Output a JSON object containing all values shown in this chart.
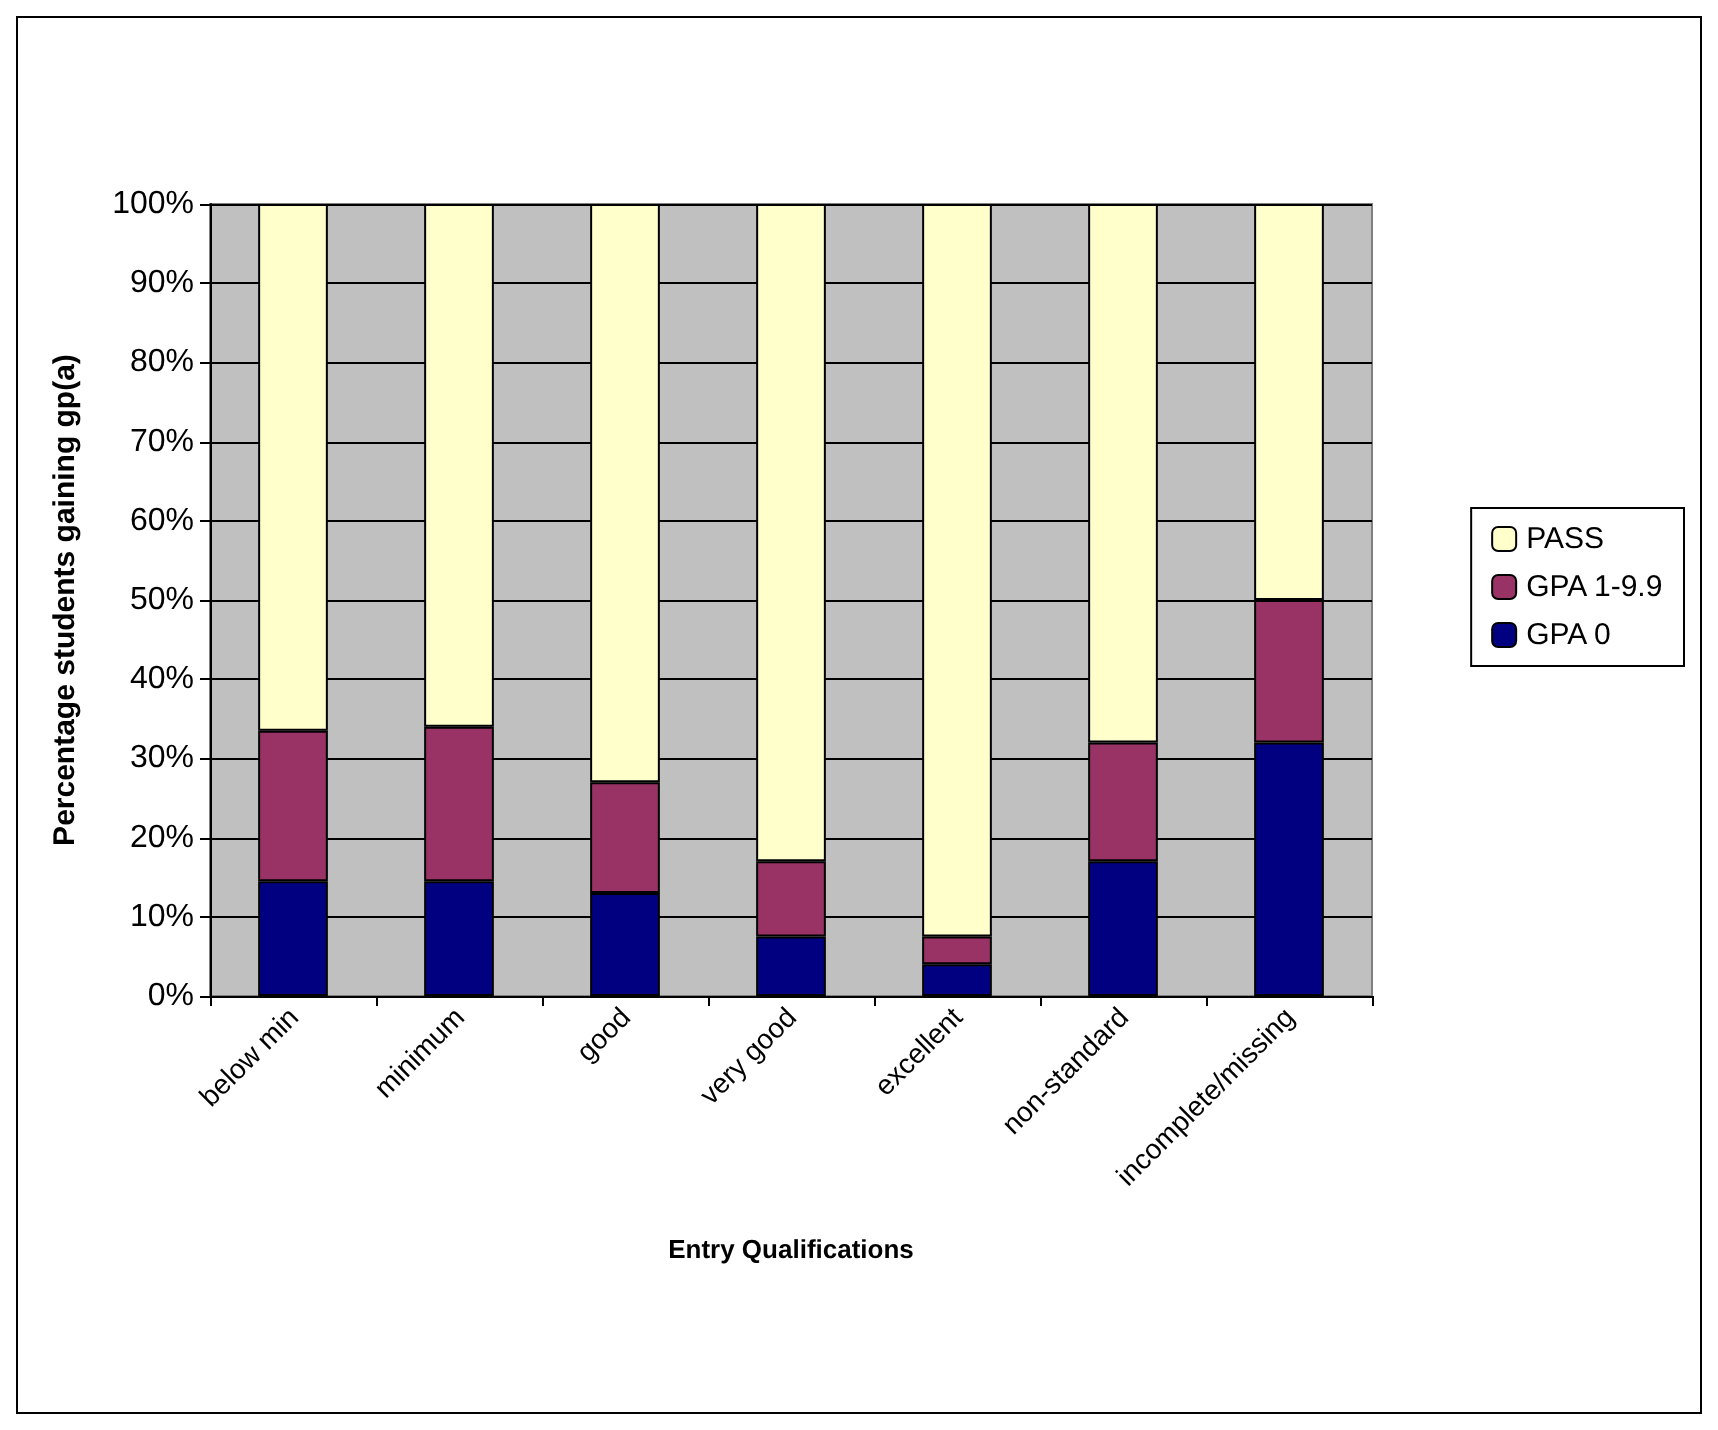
{
  "chart_data": {
    "type": "bar",
    "stacked": true,
    "xlabel": "Entry Qualifications",
    "ylabel": "Percentage students gaining gp(a)",
    "categories": [
      "below min",
      "minimum",
      "good",
      "very good",
      "excellent",
      "non-standard",
      "incomplete/missing"
    ],
    "series": [
      {
        "name": "GPA 0",
        "color": "#000080",
        "values": [
          14.5,
          14.5,
          13,
          7.5,
          4,
          17,
          32
        ]
      },
      {
        "name": "GPA 1-9.9",
        "color": "#993366",
        "values": [
          19,
          19.5,
          14,
          9.5,
          3.5,
          15,
          18
        ]
      },
      {
        "name": "PASS",
        "color": "#ffffcc",
        "values": [
          66.5,
          66,
          73,
          83,
          92.5,
          68,
          50
        ]
      }
    ],
    "ylim": [
      0,
      100
    ],
    "yticks": [
      {
        "value": 0,
        "label": "0%"
      },
      {
        "value": 10,
        "label": "10%"
      },
      {
        "value": 20,
        "label": "20%"
      },
      {
        "value": 30,
        "label": "30%"
      },
      {
        "value": 40,
        "label": "40%"
      },
      {
        "value": 50,
        "label": "50%"
      },
      {
        "value": 60,
        "label": "60%"
      },
      {
        "value": 70,
        "label": "70%"
      },
      {
        "value": 80,
        "label": "80%"
      },
      {
        "value": 90,
        "label": "90%"
      },
      {
        "value": 100,
        "label": "100%"
      }
    ],
    "grid": "y",
    "legend": "right"
  }
}
